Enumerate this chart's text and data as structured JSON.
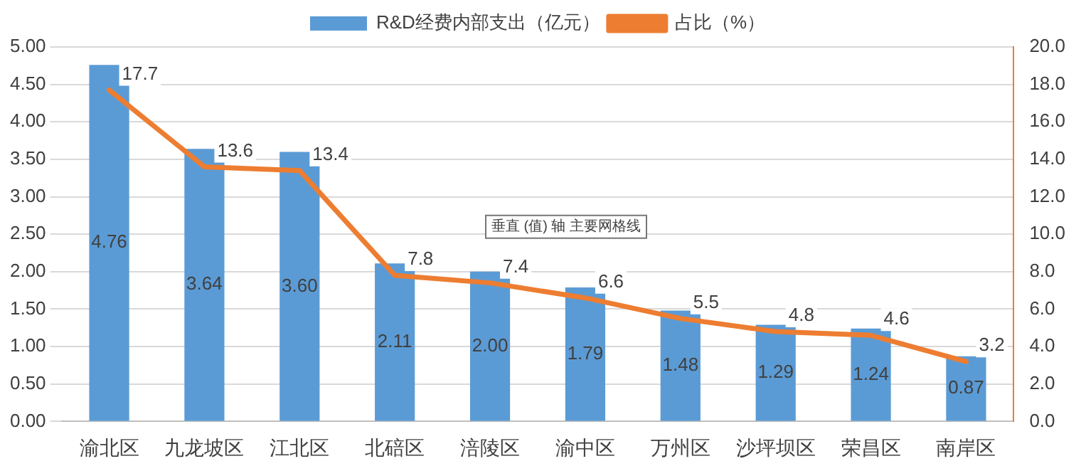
{
  "chart_data": {
    "type": "bar",
    "categories": [
      "渝北区",
      "九龙坡区",
      "江北区",
      "北碚区",
      "涪陵区",
      "渝中区",
      "万州区",
      "沙坪坝区",
      "荣昌区",
      "南岸区"
    ],
    "series": [
      {
        "name": "R&D经费内部支出（亿元）",
        "color": "#5b9bd5",
        "values": [
          4.76,
          3.64,
          3.6,
          2.11,
          2.0,
          1.79,
          1.48,
          1.29,
          1.24,
          0.87
        ],
        "value_labels": [
          "4.76",
          "3.64",
          "3.60",
          "2.11",
          "2.00",
          "1.79",
          "1.48",
          "1.29",
          "1.24",
          "0.87"
        ]
      },
      {
        "name": "占比（%）",
        "type": "line",
        "axis": "y2",
        "color": "#ed7d31",
        "values": [
          17.7,
          13.6,
          13.4,
          7.8,
          7.4,
          6.6,
          5.5,
          4.8,
          4.6,
          3.2
        ],
        "value_labels": [
          "17.7",
          "13.6",
          "13.4",
          "7.8",
          "7.4",
          "6.6",
          "5.5",
          "4.8",
          "4.6",
          "3.2"
        ]
      }
    ],
    "ylim": [
      0,
      5
    ],
    "yticks": [
      {
        "value": 0,
        "label": "0.00"
      },
      {
        "value": 0.5,
        "label": "0.50"
      },
      {
        "value": 1,
        "label": "1.00"
      },
      {
        "value": 1.5,
        "label": "1.50"
      },
      {
        "value": 2,
        "label": "2.00"
      },
      {
        "value": 2.5,
        "label": "2.50"
      },
      {
        "value": 3,
        "label": "3.00"
      },
      {
        "value": 3.5,
        "label": "3.50"
      },
      {
        "value": 4,
        "label": "4.00"
      },
      {
        "value": 4.5,
        "label": "4.50"
      },
      {
        "value": 5,
        "label": "5.00"
      }
    ],
    "y2lim": [
      0,
      20
    ],
    "y2ticks": [
      {
        "value": 0,
        "label": "0.0"
      },
      {
        "value": 2,
        "label": "2.0"
      },
      {
        "value": 4,
        "label": "4.0"
      },
      {
        "value": 6,
        "label": "6.0"
      },
      {
        "value": 8,
        "label": "8.0"
      },
      {
        "value": 10,
        "label": "10.0"
      },
      {
        "value": 12,
        "label": "12.0"
      },
      {
        "value": 14,
        "label": "14.0"
      },
      {
        "value": 16,
        "label": "16.0"
      },
      {
        "value": 18,
        "label": "18.0"
      },
      {
        "value": 20,
        "label": "20.0"
      }
    ],
    "grid": "y",
    "legend": "top",
    "marker": "none",
    "line_style": "solid",
    "annotations": [
      "垂直 (值) 轴 主要网格线"
    ]
  }
}
